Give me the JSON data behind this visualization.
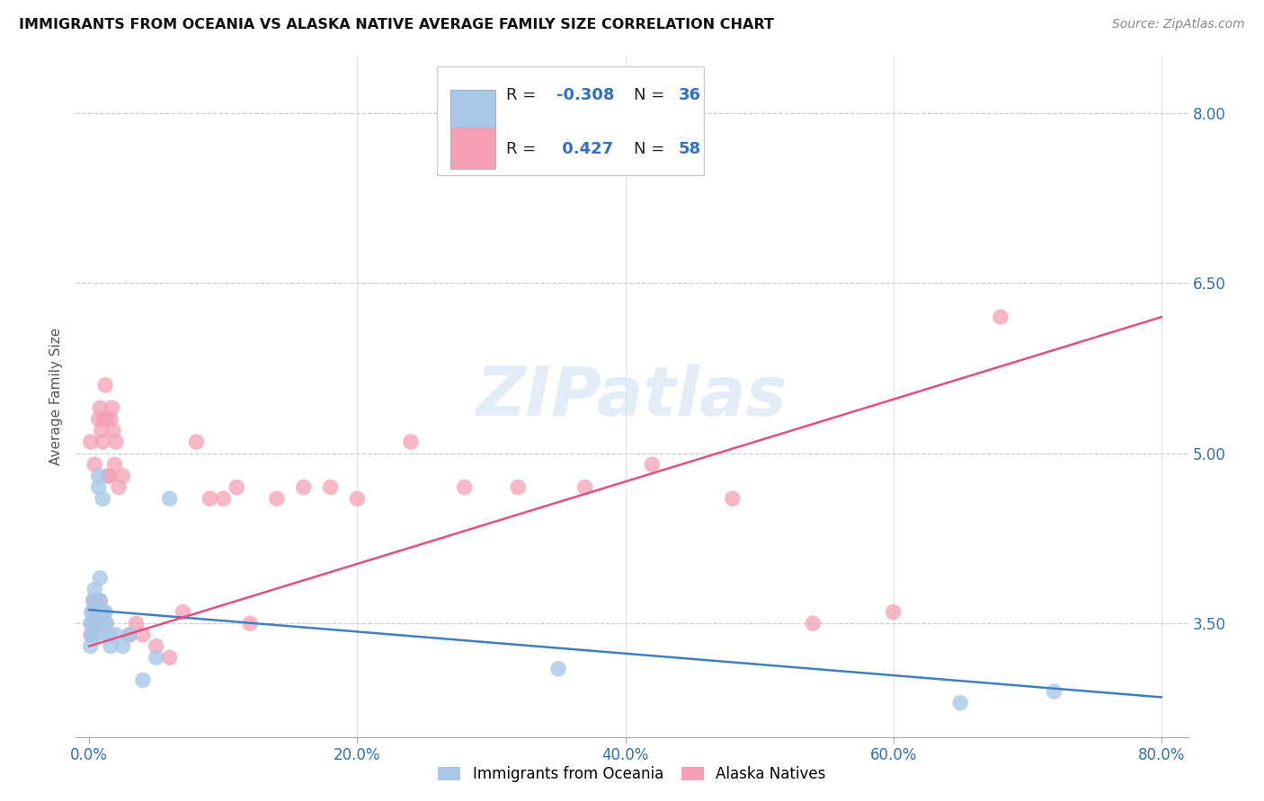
{
  "title": "IMMIGRANTS FROM OCEANIA VS ALASKA NATIVE AVERAGE FAMILY SIZE CORRELATION CHART",
  "source": "Source: ZipAtlas.com",
  "xlabel_ticks": [
    "0.0%",
    "20.0%",
    "40.0%",
    "60.0%",
    "80.0%"
  ],
  "xlabel_tick_vals": [
    0.0,
    0.2,
    0.4,
    0.6,
    0.8
  ],
  "ylabel": "Average Family Size",
  "right_yticks": [
    3.5,
    5.0,
    6.5,
    8.0
  ],
  "ylim": [
    2.5,
    8.5
  ],
  "xlim": [
    -0.01,
    0.82
  ],
  "watermark": "ZIPatlas",
  "color_blue": "#a8c8e8",
  "color_pink": "#f4a0b5",
  "line_color_blue": "#4080c0",
  "line_color_pink": "#e05080",
  "blue_r": "-0.308",
  "blue_n": "36",
  "pink_r": "0.427",
  "pink_n": "58",
  "blue_line_x": [
    0.0,
    0.8
  ],
  "blue_line_y": [
    3.62,
    2.85
  ],
  "pink_line_x": [
    0.0,
    0.8
  ],
  "pink_line_y": [
    3.3,
    6.2
  ],
  "blue_scatter_x": [
    0.001,
    0.001,
    0.002,
    0.002,
    0.003,
    0.003,
    0.003,
    0.004,
    0.004,
    0.005,
    0.005,
    0.006,
    0.006,
    0.007,
    0.007,
    0.008,
    0.008,
    0.009,
    0.009,
    0.01,
    0.01,
    0.011,
    0.012,
    0.013,
    0.014,
    0.015,
    0.016,
    0.02,
    0.025,
    0.03,
    0.04,
    0.05,
    0.06,
    0.35,
    0.65,
    0.72
  ],
  "blue_scatter_y": [
    3.3,
    3.5,
    3.4,
    3.6,
    3.5,
    3.7,
    3.4,
    3.8,
    3.6,
    3.5,
    3.4,
    3.6,
    3.5,
    4.7,
    4.8,
    3.9,
    3.7,
    3.6,
    3.5,
    4.6,
    3.5,
    3.6,
    3.6,
    3.5,
    3.4,
    3.4,
    3.3,
    3.4,
    3.3,
    3.4,
    3.0,
    3.2,
    4.6,
    3.1,
    2.8,
    2.9
  ],
  "pink_scatter_x": [
    0.001,
    0.001,
    0.002,
    0.002,
    0.003,
    0.003,
    0.004,
    0.004,
    0.005,
    0.005,
    0.006,
    0.006,
    0.007,
    0.007,
    0.008,
    0.008,
    0.009,
    0.009,
    0.01,
    0.01,
    0.011,
    0.011,
    0.012,
    0.012,
    0.013,
    0.014,
    0.015,
    0.016,
    0.017,
    0.018,
    0.019,
    0.02,
    0.022,
    0.025,
    0.03,
    0.035,
    0.04,
    0.05,
    0.06,
    0.07,
    0.08,
    0.09,
    0.1,
    0.11,
    0.12,
    0.14,
    0.16,
    0.18,
    0.2,
    0.24,
    0.28,
    0.32,
    0.37,
    0.42,
    0.48,
    0.54,
    0.6,
    0.68
  ],
  "pink_scatter_y": [
    3.4,
    5.1,
    3.5,
    3.6,
    3.5,
    3.7,
    3.7,
    4.9,
    3.5,
    3.6,
    3.6,
    3.5,
    3.6,
    5.3,
    5.4,
    3.7,
    5.2,
    3.6,
    5.1,
    3.6,
    5.3,
    3.5,
    5.6,
    3.5,
    5.3,
    4.8,
    4.8,
    5.3,
    5.4,
    5.2,
    4.9,
    5.1,
    4.7,
    4.8,
    3.4,
    3.5,
    3.4,
    3.3,
    3.2,
    3.6,
    5.1,
    4.6,
    4.6,
    4.7,
    3.5,
    4.6,
    4.7,
    4.7,
    4.6,
    5.1,
    4.7,
    4.7,
    4.7,
    4.9,
    4.6,
    3.5,
    3.6,
    6.2
  ]
}
